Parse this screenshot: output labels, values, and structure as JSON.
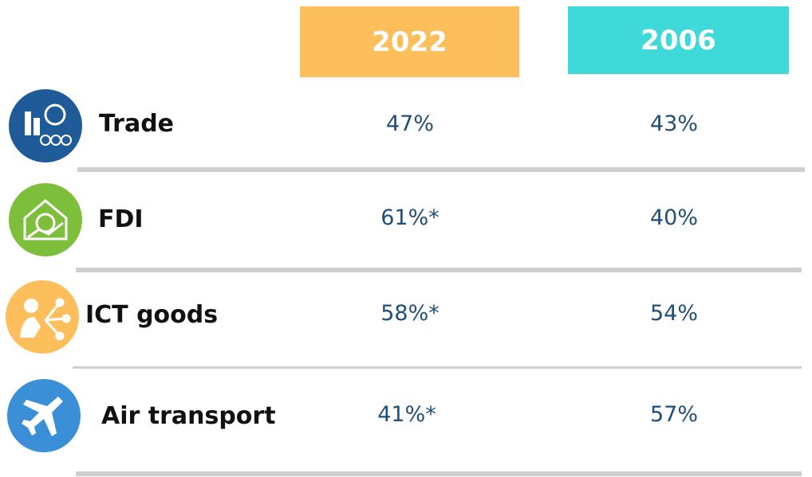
{
  "table": {
    "columns": [
      "2022",
      "2006"
    ],
    "rows": [
      {
        "label": "Trade",
        "values": [
          "47%",
          "43%"
        ]
      },
      {
        "label": "FDI",
        "values": [
          "61%*",
          "40%"
        ]
      },
      {
        "label": "ICT goods",
        "values": [
          "58%*",
          "54%"
        ]
      },
      {
        "label": "Air transport",
        "values": [
          "41%*",
          "57%"
        ]
      }
    ]
  }
}
